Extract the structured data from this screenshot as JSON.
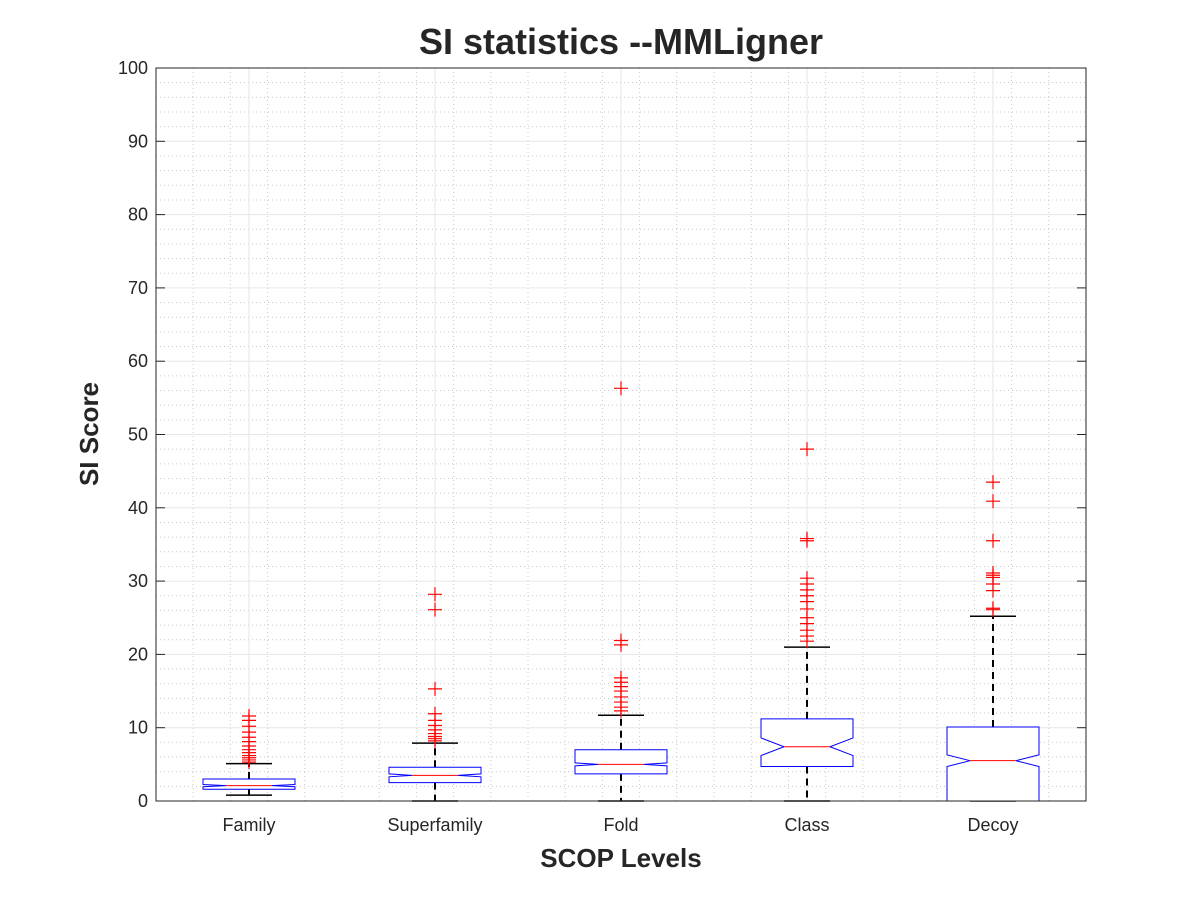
{
  "chart_data": {
    "type": "boxplot",
    "title": "SI statistics --MMLigner",
    "xlabel": "SCOP Levels",
    "ylabel": "SI Score",
    "ylim": [
      0,
      100
    ],
    "yticks": [
      0,
      10,
      20,
      30,
      40,
      50,
      60,
      70,
      80,
      90,
      100
    ],
    "grid": true,
    "minor_grid": true,
    "notched": true,
    "categories": [
      "Family",
      "Superfamily",
      "Fold",
      "Class",
      "Decoy"
    ],
    "boxes": [
      {
        "name": "Family",
        "whisker_low": 0.8,
        "q1": 1.6,
        "median": 2.1,
        "q3": 3.0,
        "whisker_high": 5.1,
        "notch_low": 1.95,
        "notch_high": 2.25,
        "outliers": [
          5.3,
          5.6,
          5.9,
          6.2,
          6.6,
          7.0,
          7.5,
          8.1,
          8.7,
          9.4,
          10.2,
          11.0,
          11.6
        ]
      },
      {
        "name": "Superfamily",
        "whisker_low": 0.0,
        "q1": 2.5,
        "median": 3.5,
        "q3": 4.6,
        "whisker_high": 7.9,
        "notch_low": 3.3,
        "notch_high": 3.7,
        "outliers": [
          8.2,
          8.5,
          8.8,
          9.2,
          9.7,
          10.3,
          11.0,
          11.9,
          15.3,
          26.1,
          28.2
        ]
      },
      {
        "name": "Fold",
        "whisker_low": 0.0,
        "q1": 3.7,
        "median": 5.0,
        "q3": 7.0,
        "whisker_high": 11.7,
        "notch_low": 4.8,
        "notch_high": 5.2,
        "outliers": [
          12.3,
          12.8,
          13.5,
          14.2,
          15.0,
          15.6,
          16.2,
          16.8,
          21.3,
          21.9,
          56.3
        ]
      },
      {
        "name": "Class",
        "whisker_low": 0.0,
        "q1": 4.7,
        "median": 7.4,
        "q3": 11.2,
        "whisker_high": 21.0,
        "notch_low": 6.2,
        "notch_high": 8.6,
        "outliers": [
          21.8,
          22.5,
          23.3,
          24.2,
          25.0,
          26.2,
          27.2,
          28.0,
          28.8,
          29.6,
          30.4,
          35.5,
          35.8,
          48.0
        ]
      },
      {
        "name": "Decoy",
        "whisker_low": 0.0,
        "q1": 0.0,
        "median": 5.5,
        "q3": 10.1,
        "whisker_high": 25.2,
        "notch_low": 4.7,
        "notch_high": 6.3,
        "outliers": [
          26.1,
          26.3,
          28.7,
          29.6,
          30.5,
          30.8,
          31.1,
          35.5,
          40.9,
          43.5
        ]
      }
    ],
    "colors": {
      "box": "#0000ff",
      "median": "#ff0000",
      "outlier": "#ff0000",
      "whisker": "#000000",
      "axis": "#262626",
      "grid": "#e6e6e6"
    }
  }
}
